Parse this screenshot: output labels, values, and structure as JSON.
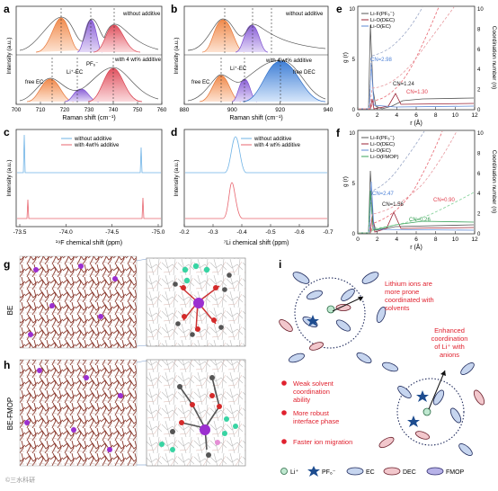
{
  "panels": {
    "a": {
      "letter": "a",
      "top_label": "without additive",
      "bottom_label": "with 4 wt% additive",
      "peak_labels": [
        "free EC",
        "Li⁺-EC",
        "PF₆⁻"
      ],
      "xlabel": "Raman shift (cm⁻¹)",
      "ylabel": "Intensity (a.u.)",
      "xticks": [
        "700",
        "710",
        "720",
        "730",
        "740",
        "750",
        "760"
      ]
    },
    "b": {
      "letter": "b",
      "top_label": "without additive",
      "bottom_label": "with 4 wt% additive",
      "peak_labels": [
        "free EC",
        "Li⁺-EC",
        "free DEC"
      ],
      "xlabel": "Raman shift (cm⁻¹)",
      "ylabel": "Intensity (a.u.)",
      "xticks": [
        "880",
        "900",
        "920",
        "940"
      ]
    },
    "c": {
      "letter": "c",
      "legend": [
        "without additive",
        "with 4wt% additive"
      ],
      "xlabel": "¹⁹F chemical shift (ppm)",
      "ylabel": "Intensity (a.u.)",
      "xticks": [
        "-73.5",
        "-74.0",
        "-74.5",
        "-75.0"
      ]
    },
    "d": {
      "letter": "d",
      "legend": [
        "without additive",
        "with 4 wt% additive"
      ],
      "xlabel": "⁷Li chemical shift (ppm)",
      "ylabel": "Intensity (a.u.)",
      "xticks": [
        "-0.2",
        "-0.3",
        "-0.4",
        "-0.5",
        "-0.6",
        "-0.7"
      ]
    },
    "e": {
      "letter": "e",
      "legend": [
        "Li-F(PF₆⁻)",
        "Li-O(DEC)",
        "Li-O(EC)"
      ],
      "annotations": [
        "CN=2.98",
        "CN=1.24",
        "CN=1.30"
      ],
      "xlabel": "r (Å)",
      "ylabel": "g (r)",
      "y2label": "Coordination number (n)",
      "xticks": [
        "0",
        "2",
        "4",
        "6",
        "8",
        "10",
        "12"
      ],
      "yticks": [
        "0",
        "5",
        "10"
      ],
      "y2ticks": [
        "0",
        "2",
        "4",
        "6",
        "8",
        "10"
      ]
    },
    "f": {
      "letter": "f",
      "legend": [
        "Li-F(PF₆⁻)",
        "Li-O(DEC)",
        "Li-O(EC)",
        "Li-O(FMOP)"
      ],
      "annotations": [
        "CN=2.47",
        "CN=1.56",
        "CN=0.90",
        "CN=0.26"
      ],
      "xlabel": "r (Å)",
      "ylabel": "g (r)",
      "y2label": "Coordination number (n)",
      "xticks": [
        "0",
        "2",
        "4",
        "6",
        "8",
        "10",
        "12"
      ],
      "yticks": [
        "0",
        "5",
        "10"
      ],
      "y2ticks": [
        "0",
        "2",
        "4",
        "6",
        "8",
        "10"
      ]
    },
    "g": {
      "letter": "g",
      "side_label": "BE"
    },
    "h": {
      "letter": "h",
      "side_label": "BE-FMOP"
    },
    "i": {
      "letter": "i",
      "top_text": "Lithium ions are more prone coordinated with solvents",
      "right_text": "Enhanced coordination of Li⁺ with anions",
      "bullets": [
        "Weak solvent coordination ability",
        "More robust interface phase",
        "Faster ion migration"
      ],
      "legend": [
        "Li⁺",
        "PF₆⁻",
        "EC",
        "DEC",
        "FMOP"
      ]
    }
  },
  "watermark": "©三水科研"
}
